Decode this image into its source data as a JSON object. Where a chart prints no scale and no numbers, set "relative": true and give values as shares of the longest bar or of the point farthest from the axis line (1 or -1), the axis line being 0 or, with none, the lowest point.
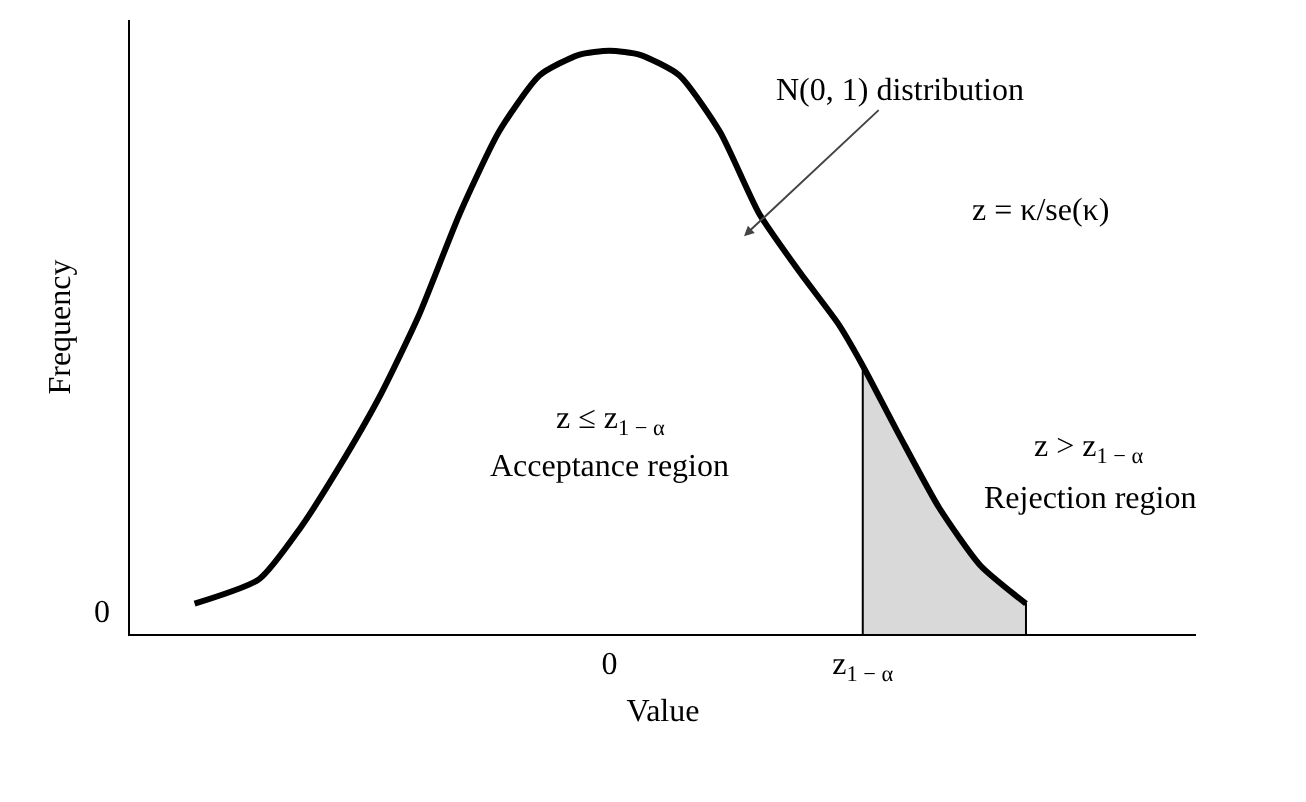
{
  "chart_data": {
    "type": "line",
    "relative": true,
    "xlabel": "Value",
    "ylabel": "Frequency",
    "x": [
      -2.44,
      -2.06,
      -1.82,
      -1.59,
      -1.35,
      -1.12,
      -0.88,
      -0.65,
      -0.41,
      -0.18,
      0,
      0.18,
      0.41,
      0.65,
      0.88,
      1.12,
      1.35,
      1.49,
      1.71,
      1.94,
      2.18,
      2.45
    ],
    "series": [
      {
        "color": "#000000",
        "values": [
          0.052,
          0.094,
          0.181,
          0.286,
          0.408,
          0.547,
          0.721,
          0.861,
          0.958,
          0.993,
          1,
          0.993,
          0.958,
          0.861,
          0.721,
          0.62,
          0.53,
          0.46,
          0.338,
          0.216,
          0.118,
          0.052
        ]
      },
      {
        "type": "area",
        "color": "#d9d9d9",
        "x": [
          1.49,
          1.49,
          1.71,
          1.94,
          2.18,
          2.45,
          2.45
        ],
        "values": [
          0,
          0.46,
          0.338,
          0.216,
          0.118,
          0.052,
          0
        ]
      }
    ],
    "xlim": [
      -2.82,
      3.45
    ],
    "xticks": [
      {
        "value": 0,
        "label": "0"
      },
      {
        "value": 1.49,
        "label": "z$_{1 − α}$"
      }
    ],
    "grid": false,
    "marker": "none",
    "line_style": "solid",
    "annotations": [
      "N(0, 1) distribution",
      "z = κ/se(κ)",
      "z ≤ z$_{1 − α}$",
      "Acceptance region",
      "z > z$_{1 − α}$",
      "Rejection region",
      "0"
    ]
  }
}
